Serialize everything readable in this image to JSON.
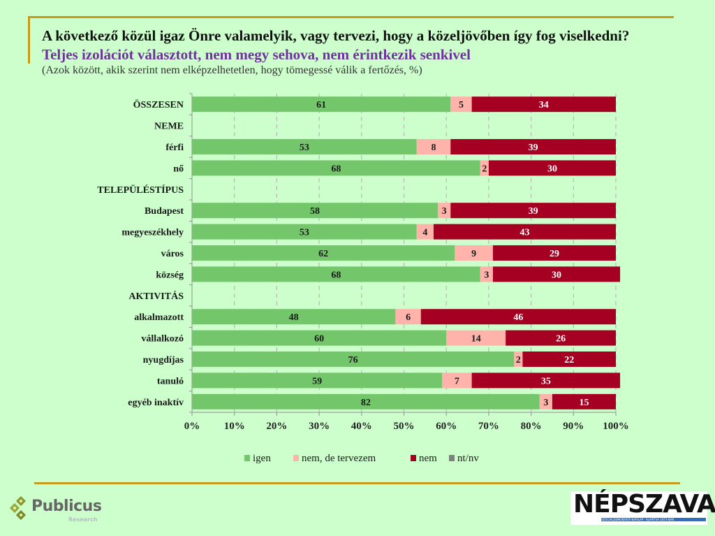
{
  "header": {
    "title_main": "A következő közül igaz Önre valamelyik, vagy tervezi, hogy a közeljövőben így fog viselkedni?",
    "title_accent": "Teljes izolációt választott, nem megy sehova, nem érintkezik senkivel",
    "subtitle": "(Azok között, akik szerint nem elképzelhetetlen, hogy tömegessé válik a fertőzés, %)"
  },
  "colors": {
    "igen": "#73c66a",
    "nem_de_tervezem": "#ffb3aa",
    "nem": "#a50021",
    "nt_nv": "#808080",
    "background": "#ccffcc",
    "rule": "#c89a1a"
  },
  "chart_data": {
    "type": "bar",
    "orientation": "horizontal-stacked-100",
    "title": "A következő közül igaz Önre valamelyik, vagy tervezi, hogy a közeljövőben így fog viselkedni? Teljes izolációt választott, nem megy sehova, nem érintkezik senkivel",
    "subtitle": "(Azok között, akik szerint nem elképzelhetetlen, hogy tömegessé válik a fertőzés, %)",
    "xlabel": "",
    "ylabel": "",
    "xlim": [
      0,
      100
    ],
    "x_ticks": [
      "0%",
      "10%",
      "20%",
      "30%",
      "40%",
      "50%",
      "60%",
      "70%",
      "80%",
      "90%",
      "100%"
    ],
    "grid": "vertical dashed",
    "legend_position": "bottom",
    "categories": [
      "ÖSSZESEN",
      "NEME",
      "férfi",
      "nő",
      "TELEPÜLÉSTÍPUS",
      "Budapest",
      "megyeszékhely",
      "város",
      "község",
      "AKTIVITÁS",
      "alkalmazott",
      "vállalkozó",
      "nyugdíjas",
      "tanuló",
      "egyéb inaktív"
    ],
    "is_header": [
      false,
      true,
      false,
      false,
      true,
      false,
      false,
      false,
      false,
      true,
      false,
      false,
      false,
      false,
      false
    ],
    "series": [
      {
        "name": "igen",
        "color": "#73c66a",
        "values": [
          61,
          null,
          53,
          68,
          null,
          58,
          53,
          62,
          68,
          null,
          48,
          60,
          76,
          59,
          82
        ]
      },
      {
        "name": "nem, de tervezem",
        "color": "#ffb3aa",
        "values": [
          5,
          null,
          8,
          2,
          null,
          3,
          4,
          9,
          3,
          null,
          6,
          14,
          2,
          7,
          3
        ]
      },
      {
        "name": "nem",
        "color": "#a50021",
        "values": [
          34,
          null,
          39,
          30,
          null,
          39,
          43,
          29,
          30,
          null,
          46,
          26,
          22,
          35,
          15
        ]
      },
      {
        "name": "nt/nv",
        "color": "#808080",
        "values": [
          0,
          null,
          0,
          0,
          null,
          0,
          0,
          0,
          0,
          null,
          0,
          0,
          0,
          0,
          0
        ]
      }
    ]
  },
  "footer": {
    "publicus_name": "Publicus",
    "publicus_sub": "Research",
    "nepszava_name": "NÉPSZAVA",
    "nepszava_tag": "SZOCIÁLDEMOKRATA NAPILAP · ALAPÍTVA 1873-BAN"
  }
}
